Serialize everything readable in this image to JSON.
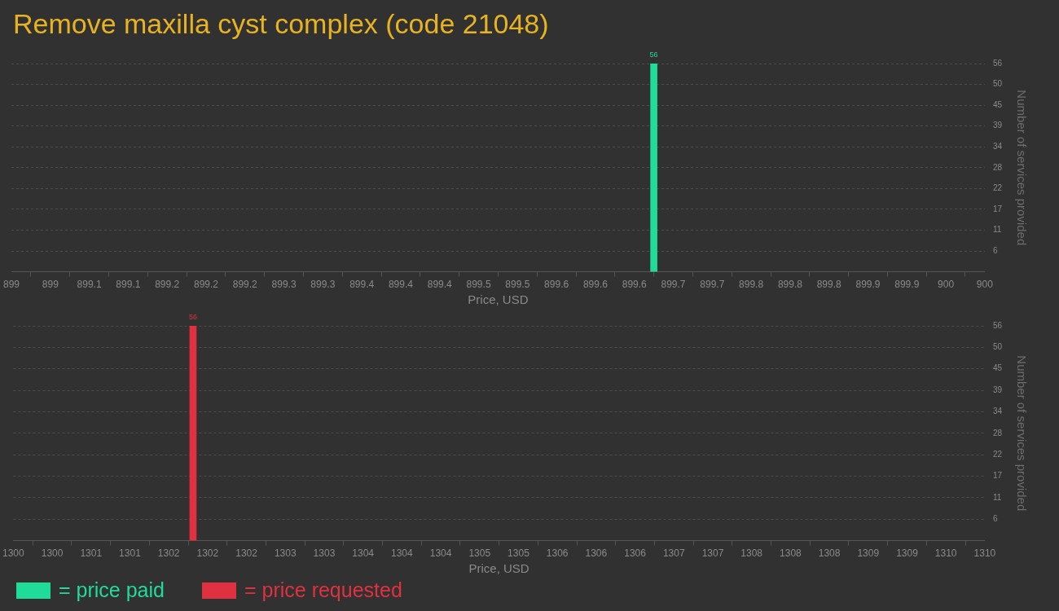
{
  "chart_data": [
    {
      "type": "bar",
      "title": "Remove maxilla cyst complex (code 21048)",
      "xlabel": "Price, USD",
      "ylabel": "Number of services provided",
      "x": [
        899.66
      ],
      "series": [
        {
          "name": "= price paid",
          "color": "#1fdc9a",
          "values": [
            56
          ]
        }
      ],
      "xlim": [
        899,
        900
      ],
      "xticks": [
        {
          "value": 899,
          "label": "899"
        },
        {
          "value": 899.04,
          "label": "899"
        },
        {
          "value": 899.08,
          "label": "899.1"
        },
        {
          "value": 899.12,
          "label": "899.1"
        },
        {
          "value": 899.16,
          "label": "899.2"
        },
        {
          "value": 899.2,
          "label": "899.2"
        },
        {
          "value": 899.24,
          "label": "899.2"
        },
        {
          "value": 899.28,
          "label": "899.3"
        },
        {
          "value": 899.32,
          "label": "899.3"
        },
        {
          "value": 899.36,
          "label": "899.4"
        },
        {
          "value": 899.4,
          "label": "899.4"
        },
        {
          "value": 899.44,
          "label": "899.4"
        },
        {
          "value": 899.48,
          "label": "899.5"
        },
        {
          "value": 899.52,
          "label": "899.5"
        },
        {
          "value": 899.56,
          "label": "899.6"
        },
        {
          "value": 899.6,
          "label": "899.6"
        },
        {
          "value": 899.64,
          "label": "899.6"
        },
        {
          "value": 899.68,
          "label": "899.7"
        },
        {
          "value": 899.72,
          "label": "899.7"
        },
        {
          "value": 899.76,
          "label": "899.8"
        },
        {
          "value": 899.8,
          "label": "899.8"
        },
        {
          "value": 899.84,
          "label": "899.8"
        },
        {
          "value": 899.88,
          "label": "899.9"
        },
        {
          "value": 899.92,
          "label": "899.9"
        },
        {
          "value": 899.96,
          "label": "900"
        },
        {
          "value": 900,
          "label": "900"
        }
      ],
      "ylim": [
        0,
        56
      ],
      "yticks": [
        {
          "value": 5.6,
          "label": "6"
        },
        {
          "value": 11.2,
          "label": "11"
        },
        {
          "value": 16.8,
          "label": "17"
        },
        {
          "value": 22.4,
          "label": "22"
        },
        {
          "value": 28,
          "label": "28"
        },
        {
          "value": 33.6,
          "label": "34"
        },
        {
          "value": 39.2,
          "label": "39"
        },
        {
          "value": 44.8,
          "label": "45"
        },
        {
          "value": 50.4,
          "label": "50"
        },
        {
          "value": 56,
          "label": "56"
        }
      ],
      "grid": "y",
      "data_labels": true,
      "legend": "bottom"
    },
    {
      "type": "bar",
      "xlabel": "Price, USD",
      "ylabel": "Number of services provided",
      "x": [
        1301.85
      ],
      "series": [
        {
          "name": "= price requested",
          "color": "#e03140",
          "values": [
            56
          ]
        }
      ],
      "xlim": [
        1300,
        1310
      ],
      "xticks": [
        {
          "value": 1300,
          "label": "1300"
        },
        {
          "value": 1300.4,
          "label": "1300"
        },
        {
          "value": 1300.8,
          "label": "1301"
        },
        {
          "value": 1301.2,
          "label": "1301"
        },
        {
          "value": 1301.6,
          "label": "1302"
        },
        {
          "value": 1302,
          "label": "1302"
        },
        {
          "value": 1302.4,
          "label": "1302"
        },
        {
          "value": 1302.8,
          "label": "1303"
        },
        {
          "value": 1303.2,
          "label": "1303"
        },
        {
          "value": 1303.6,
          "label": "1304"
        },
        {
          "value": 1304,
          "label": "1304"
        },
        {
          "value": 1304.4,
          "label": "1304"
        },
        {
          "value": 1304.8,
          "label": "1305"
        },
        {
          "value": 1305.2,
          "label": "1305"
        },
        {
          "value": 1305.6,
          "label": "1306"
        },
        {
          "value": 1306,
          "label": "1306"
        },
        {
          "value": 1306.4,
          "label": "1306"
        },
        {
          "value": 1306.8,
          "label": "1307"
        },
        {
          "value": 1307.2,
          "label": "1307"
        },
        {
          "value": 1307.6,
          "label": "1308"
        },
        {
          "value": 1308,
          "label": "1308"
        },
        {
          "value": 1308.4,
          "label": "1308"
        },
        {
          "value": 1308.8,
          "label": "1309"
        },
        {
          "value": 1309.2,
          "label": "1309"
        },
        {
          "value": 1309.6,
          "label": "1310"
        },
        {
          "value": 1310,
          "label": "1310"
        }
      ],
      "ylim": [
        0,
        56
      ],
      "yticks": [
        {
          "value": 5.6,
          "label": "6"
        },
        {
          "value": 11.2,
          "label": "11"
        },
        {
          "value": 16.8,
          "label": "17"
        },
        {
          "value": 22.4,
          "label": "22"
        },
        {
          "value": 28,
          "label": "28"
        },
        {
          "value": 33.6,
          "label": "34"
        },
        {
          "value": 39.2,
          "label": "39"
        },
        {
          "value": 44.8,
          "label": "45"
        },
        {
          "value": 50.4,
          "label": "50"
        },
        {
          "value": 56,
          "label": "56"
        }
      ],
      "grid": "y",
      "data_labels": true,
      "legend": "bottom"
    }
  ]
}
